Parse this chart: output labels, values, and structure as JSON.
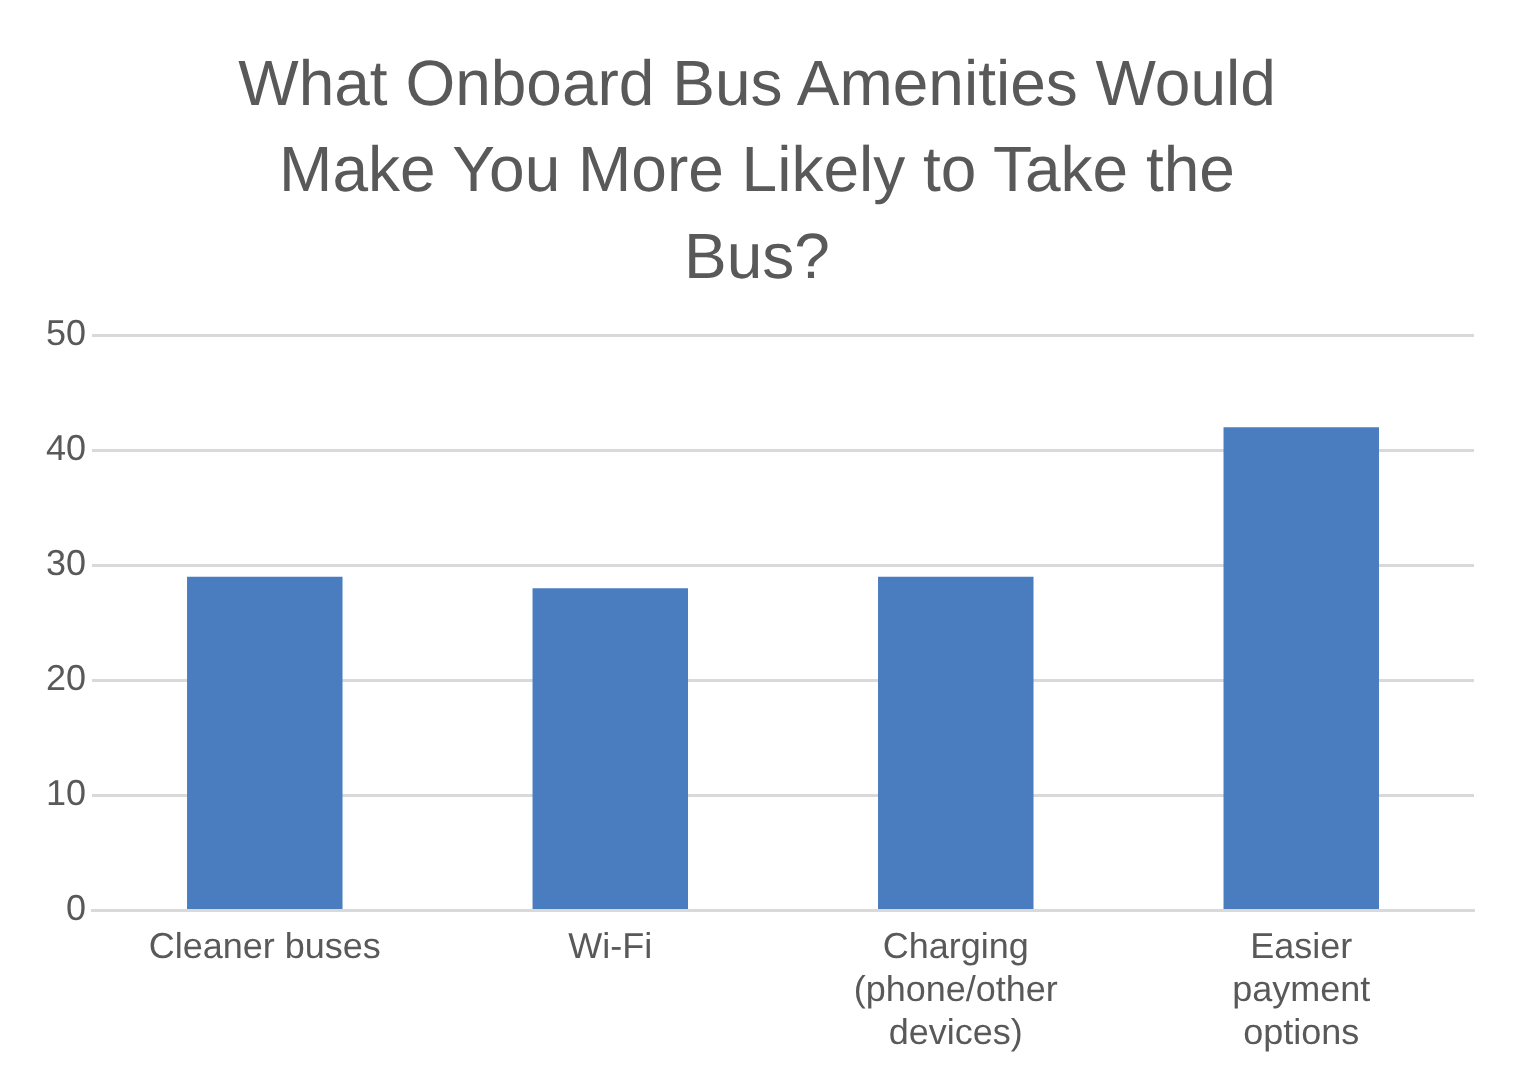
{
  "chart_data": {
    "type": "bar",
    "title": "What Onboard Bus Amenities Would Make You More Likely to Take the Bus?",
    "categories": [
      "Cleaner buses",
      "Wi-Fi",
      "Charging (phone/other devices)",
      "Easier payment options"
    ],
    "values": [
      29,
      28,
      29,
      42
    ],
    "color": "#4a7cc0",
    "ylim": [
      0,
      50
    ],
    "yticks": [
      0,
      10,
      20,
      30,
      40,
      50
    ],
    "grid": "y"
  }
}
